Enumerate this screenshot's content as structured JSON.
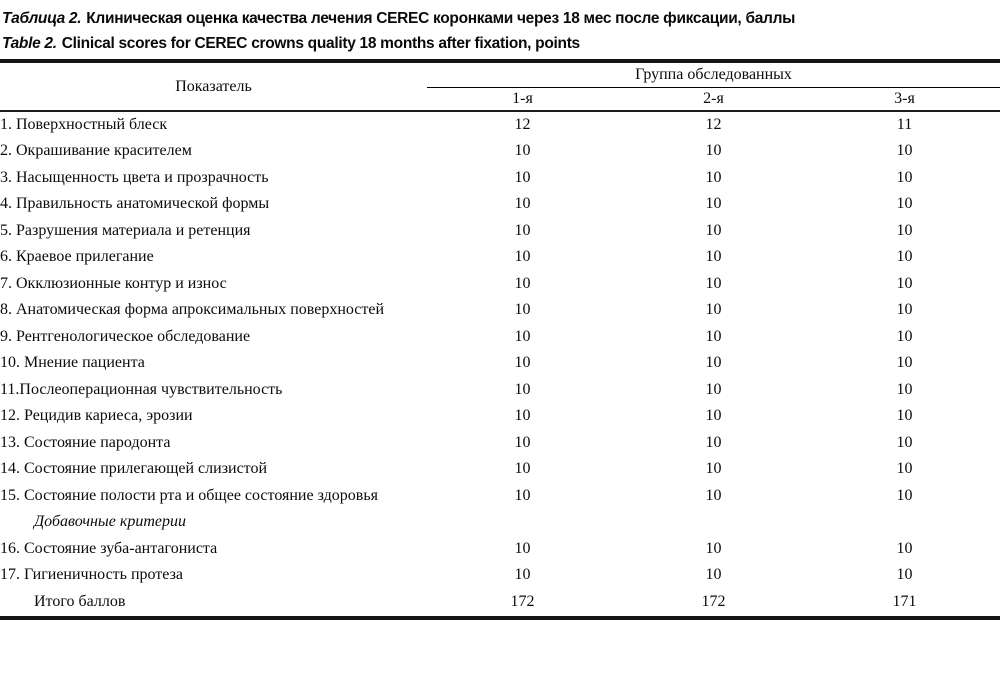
{
  "titles": {
    "ru": {
      "prefix": "Таблица 2.",
      "text": "Клиническая оценка качества лечения CEREC коронками через 18 мес после фиксации, баллы"
    },
    "en": {
      "prefix": "Table 2.",
      "text": "Clinical scores for CEREC crowns quality 18 months after fixation, points"
    }
  },
  "table": {
    "header": {
      "indicator": "Показатель",
      "group": "Группа обследованных",
      "subheaders": [
        "1-я",
        "2-я",
        "3-я"
      ]
    },
    "rows": [
      {
        "label": "1. Поверхностный блеск",
        "values": [
          "12",
          "12",
          "11"
        ]
      },
      {
        "label": "2. Окрашивание красителем",
        "values": [
          "10",
          "10",
          "10"
        ]
      },
      {
        "label": "3. Насыщенность цвета и прозрачность",
        "values": [
          "10",
          "10",
          "10"
        ]
      },
      {
        "label": "4. Правильность анатомической формы",
        "values": [
          "10",
          "10",
          "10"
        ]
      },
      {
        "label": "5. Разрушения материала и ретенция",
        "values": [
          "10",
          "10",
          "10"
        ]
      },
      {
        "label": "6. Краевое прилегание",
        "values": [
          "10",
          "10",
          "10"
        ]
      },
      {
        "label": "7. Окклюзионные контур и износ",
        "values": [
          "10",
          "10",
          "10"
        ]
      },
      {
        "label": "8. Анатомическая форма апроксимальных поверхностей",
        "values": [
          "10",
          "10",
          "10"
        ]
      },
      {
        "label": "9. Рентгенологическое обследование",
        "values": [
          "10",
          "10",
          "10"
        ]
      },
      {
        "label": "10. Мнение пациента",
        "values": [
          "10",
          "10",
          "10"
        ]
      },
      {
        "label": "11.Послеоперационная чувствительность",
        "values": [
          "10",
          "10",
          "10"
        ]
      },
      {
        "label": "12. Рецидив кариеса, эрозии",
        "values": [
          "10",
          "10",
          "10"
        ]
      },
      {
        "label": "13. Состояние пародонта",
        "values": [
          "10",
          "10",
          "10"
        ]
      },
      {
        "label": "14. Состояние прилегающей слизистой",
        "values": [
          "10",
          "10",
          "10"
        ]
      },
      {
        "label": "15. Состояние полости рта и общее состояние здоровья",
        "values": [
          "10",
          "10",
          "10"
        ]
      },
      {
        "label": "Добавочные критерии",
        "style": "section",
        "values": [
          "",
          "",
          ""
        ]
      },
      {
        "label": "16. Состояние зуба-антагониста",
        "values": [
          "10",
          "10",
          "10"
        ]
      },
      {
        "label": "17. Гигиеничность протеза",
        "values": [
          "10",
          "10",
          "10"
        ]
      },
      {
        "label": "Итого баллов",
        "style": "total",
        "values": [
          "172",
          "172",
          "171"
        ]
      }
    ]
  }
}
